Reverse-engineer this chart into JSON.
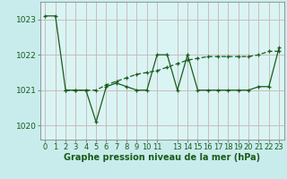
{
  "title": "Graphe pression niveau de la mer (hPa)",
  "bg_color": "#c8ecec",
  "plot_bg_color": "#daf4f4",
  "grid_color": "#c8b4b4",
  "line_color": "#1a5c1a",
  "series1_x": [
    0,
    1,
    2,
    3,
    4,
    5,
    6,
    7,
    8,
    9,
    10,
    11,
    12,
    13,
    14,
    15,
    16,
    17,
    18,
    19,
    20,
    21,
    22,
    23
  ],
  "series1_y": [
    1023.1,
    1023.1,
    1021.0,
    1021.0,
    1021.0,
    1020.1,
    1021.1,
    1021.2,
    1021.1,
    1021.0,
    1021.0,
    1022.0,
    1022.0,
    1021.0,
    1022.0,
    1021.0,
    1021.0,
    1021.0,
    1021.0,
    1021.0,
    1021.0,
    1021.1,
    1021.1,
    1022.2
  ],
  "series2_x": [
    2,
    3,
    4,
    5,
    6,
    7,
    8,
    9,
    10,
    11,
    12,
    13,
    14,
    15,
    16,
    17,
    18,
    19,
    20,
    21,
    22,
    23
  ],
  "series2_y": [
    1021.0,
    1021.0,
    1021.0,
    1021.0,
    1021.15,
    1021.25,
    1021.35,
    1021.45,
    1021.5,
    1021.55,
    1021.65,
    1021.75,
    1021.85,
    1021.9,
    1021.95,
    1021.95,
    1021.95,
    1021.95,
    1021.95,
    1022.0,
    1022.1,
    1022.1
  ],
  "ylim": [
    1019.6,
    1023.5
  ],
  "yticks": [
    1020,
    1021,
    1022,
    1023
  ],
  "xtick_positions": [
    0,
    1,
    2,
    3,
    4,
    5,
    6,
    7,
    8,
    9,
    10,
    11,
    13,
    14,
    15,
    16,
    17,
    18,
    19,
    20,
    21,
    22,
    23
  ],
  "xtick_labels": [
    "0",
    "1",
    "2",
    "3",
    "4",
    "5",
    "6",
    "7",
    "8",
    "9",
    "10",
    "11",
    "13",
    "14",
    "15",
    "16",
    "17",
    "18",
    "19",
    "20",
    "21",
    "22",
    "23"
  ],
  "xlabel_fontsize": 6,
  "ylabel_fontsize": 6.5,
  "title_fontsize": 7,
  "marker_size": 3
}
